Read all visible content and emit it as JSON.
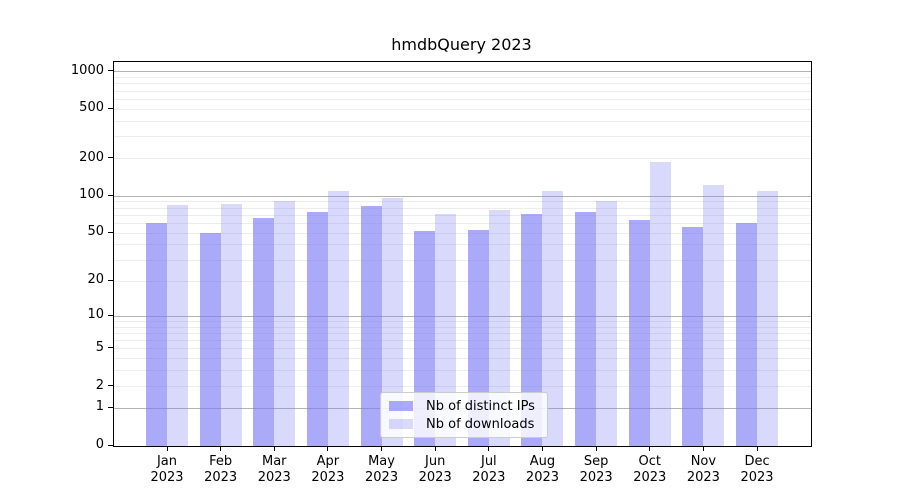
{
  "title": "hmdbQuery 2023",
  "chart_data": {
    "type": "bar",
    "title": "hmdbQuery 2023",
    "categories": [
      "Jan 2023",
      "Feb 2023",
      "Mar 2023",
      "Apr 2023",
      "May 2023",
      "Jun 2023",
      "Jul 2023",
      "Aug 2023",
      "Sep 2023",
      "Oct 2023",
      "Nov 2023",
      "Dec 2023"
    ],
    "series": [
      {
        "name": "Nb of distinct IPs",
        "fill": "rgba(124,124,245,0.65)",
        "solid_hex": "#aaaaf8",
        "values": [
          60,
          50,
          66,
          74,
          83,
          52,
          53,
          71,
          74,
          64,
          56,
          60
        ]
      },
      {
        "name": "Nb of downloads",
        "fill": "rgba(124,124,245,0.29)",
        "solid_hex": "#d9d9f9",
        "values": [
          84,
          87,
          91,
          110,
          96,
          72,
          77,
          110,
          91,
          190,
          122,
          110
        ]
      }
    ],
    "xlabel": "",
    "ylabel": "",
    "yscale": "log1p",
    "y_ticks": [
      0,
      1,
      2,
      5,
      10,
      20,
      50,
      100,
      200,
      500,
      1000
    ],
    "y_major_gridlines": [
      1,
      10,
      100,
      1000
    ],
    "ylim": [
      0,
      1200
    ],
    "grid": true,
    "grid_major_color": "#b3b3b3",
    "grid_minor_color": "#ececec",
    "legend_position": "lower center",
    "legend_border_color": "#cccccc"
  }
}
